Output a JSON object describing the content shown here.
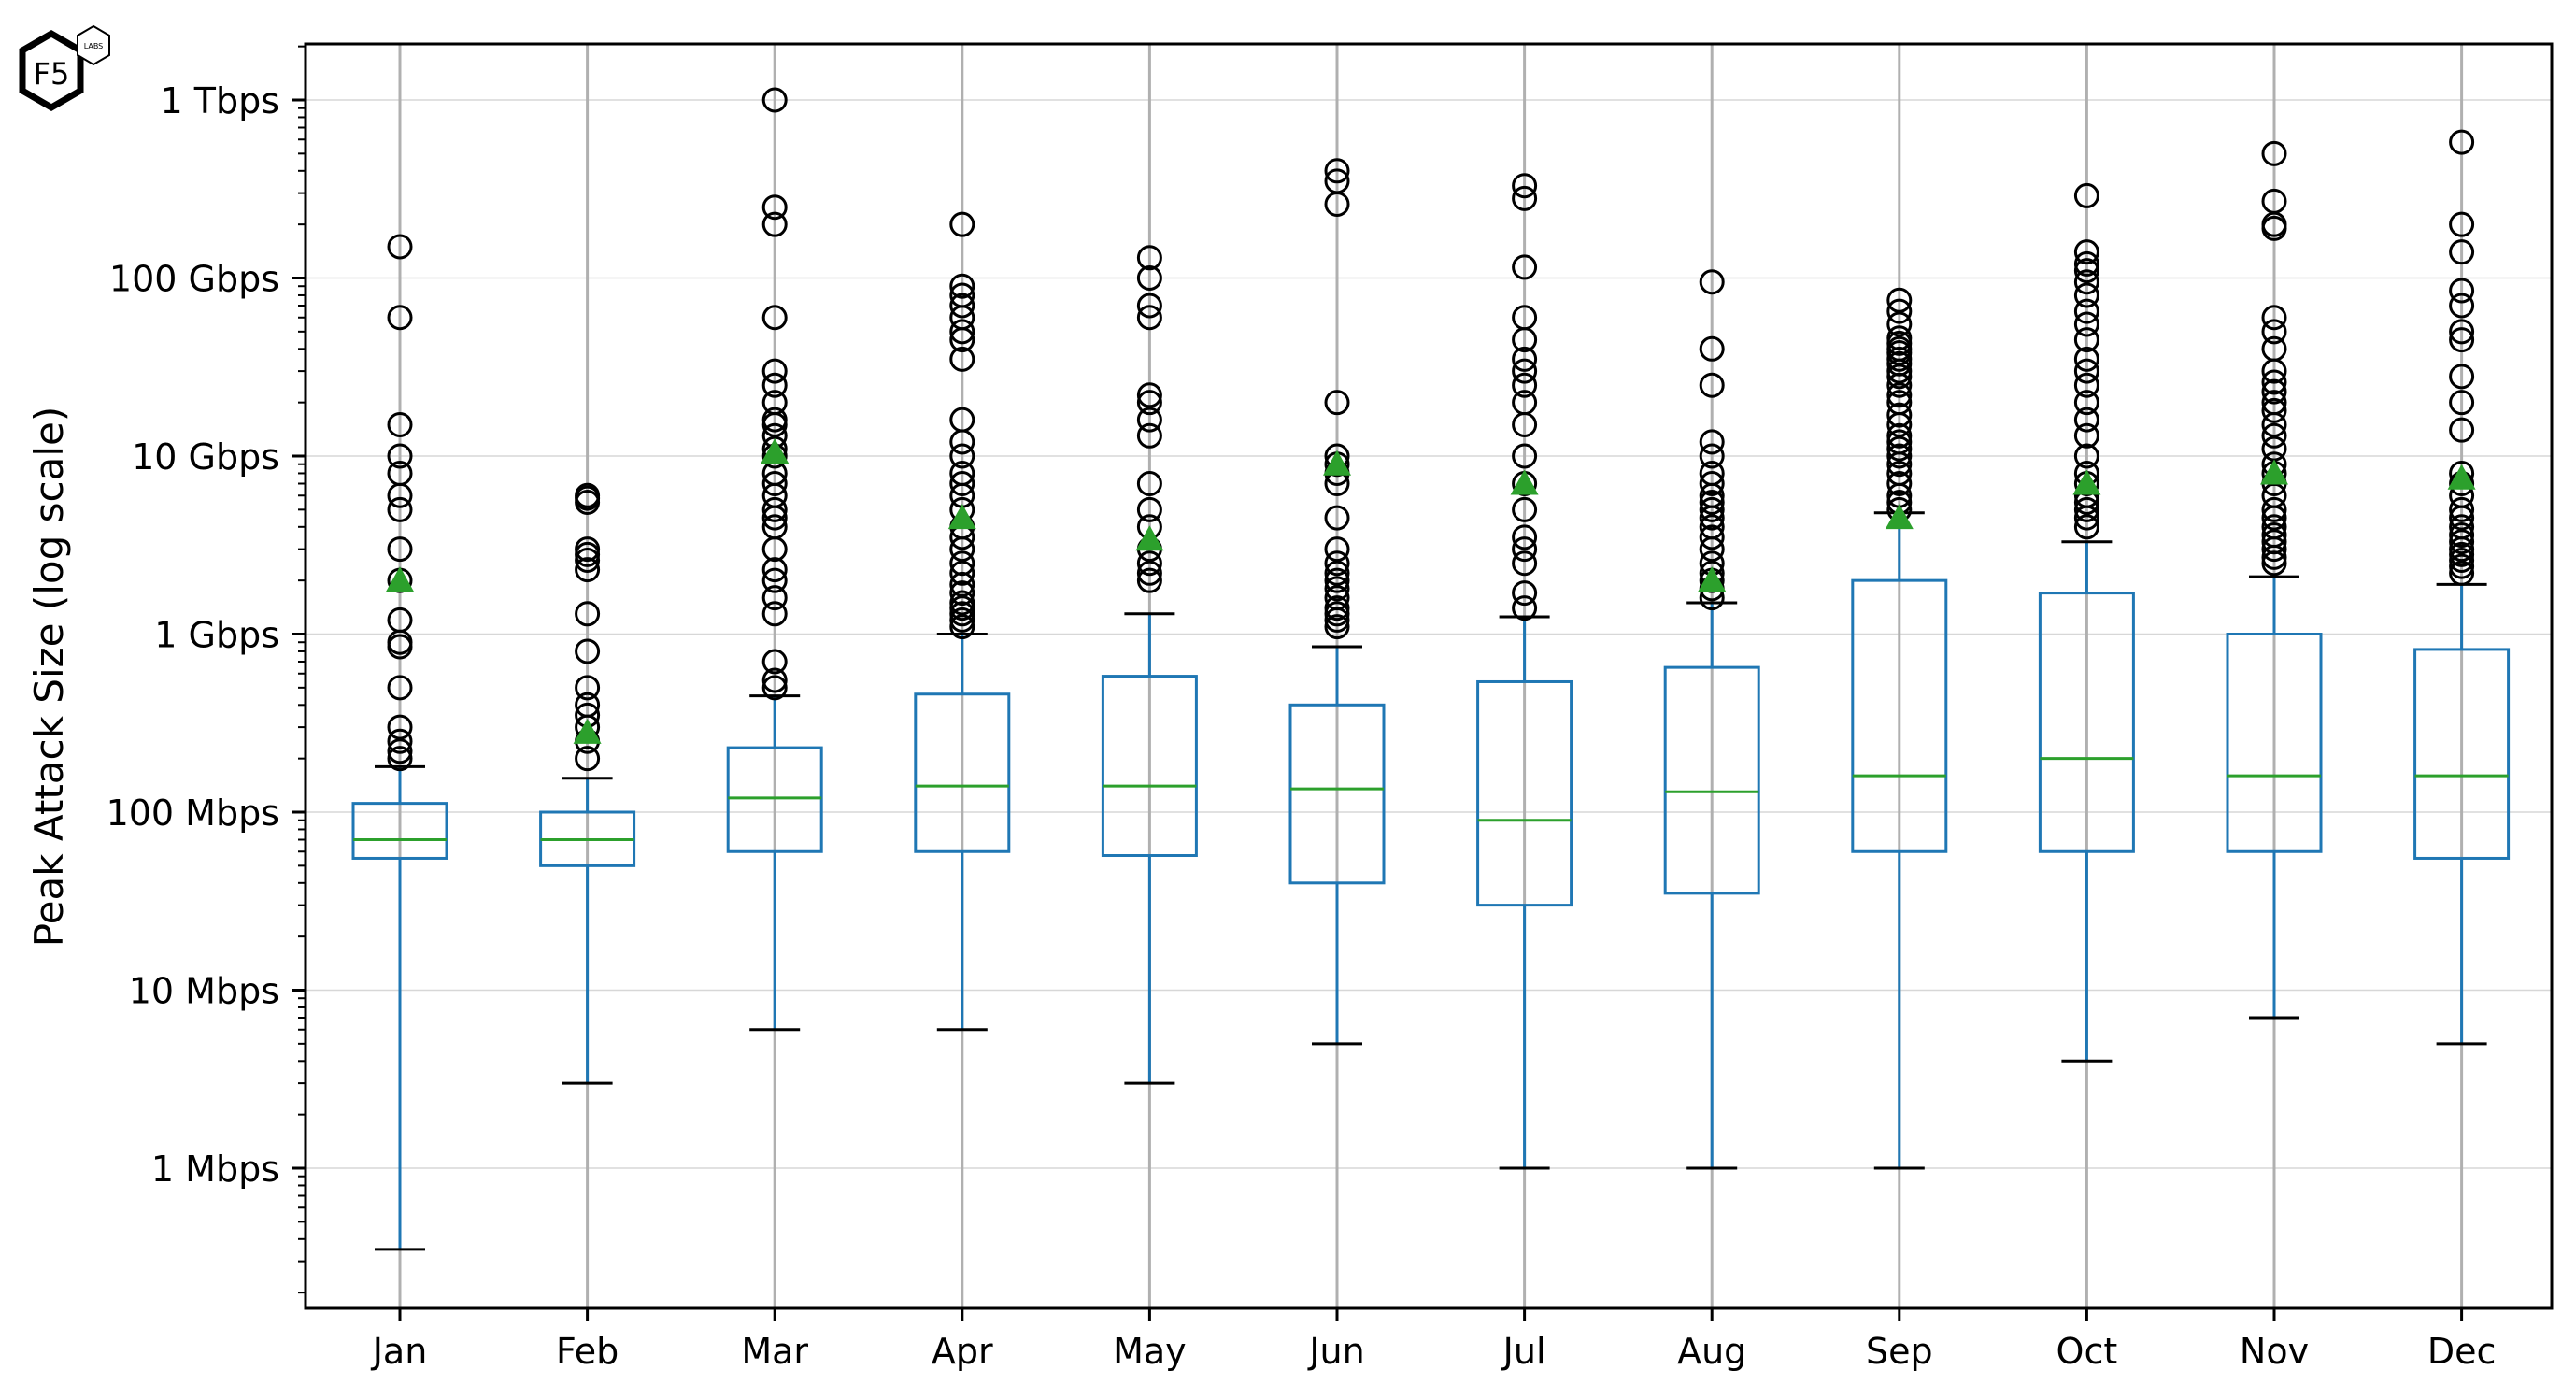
{
  "logo": {
    "main_text": "F5",
    "badge_text": "LABS"
  },
  "colors": {
    "box": "#1f77b4",
    "median": "#2ca02c",
    "mean_marker": "#2ca02c",
    "whisker": "#1f77b4",
    "cap": "#000000",
    "flier": "#000000",
    "grid": "#b0b0b0"
  },
  "chart_data": {
    "type": "box",
    "title": "",
    "xlabel": "",
    "ylabel": "Peak Attack Size (log scale)",
    "yscale": "log",
    "yunit_base": "Mbps",
    "ylim": [
      0.15,
      1600000
    ],
    "grid": true,
    "categories": [
      "Jan",
      "Feb",
      "Mar",
      "Apr",
      "May",
      "Jun",
      "Jul",
      "Aug",
      "Sep",
      "Oct",
      "Nov",
      "Dec"
    ],
    "yticks": [
      {
        "value": 1,
        "label": "1 Mbps"
      },
      {
        "value": 10,
        "label": "10 Mbps"
      },
      {
        "value": 100,
        "label": "100 Mbps"
      },
      {
        "value": 1000,
        "label": "1 Gbps"
      },
      {
        "value": 10000,
        "label": "10 Gbps"
      },
      {
        "value": 100000,
        "label": "100 Gbps"
      },
      {
        "value": 1000000,
        "label": "1 Tbps"
      }
    ],
    "boxes": [
      {
        "month": "Jan",
        "whisker_low": 0.35,
        "q1": 55,
        "median": 70,
        "q3": 112,
        "whisker_high": 180,
        "mean": 2000,
        "fliers": [
          200,
          220,
          250,
          300,
          500,
          850,
          900,
          1200,
          2000,
          3000,
          5000,
          6000,
          8000,
          10000,
          15000,
          60000,
          150000
        ]
      },
      {
        "month": "Feb",
        "whisker_low": 3,
        "q1": 50,
        "median": 70,
        "q3": 100,
        "whisker_high": 155,
        "mean": 280,
        "fliers": [
          200,
          250,
          300,
          350,
          400,
          500,
          800,
          1300,
          2300,
          2600,
          2800,
          3000,
          5500,
          5800,
          6000
        ]
      },
      {
        "month": "Mar",
        "whisker_low": 6,
        "q1": 60,
        "median": 120,
        "q3": 230,
        "whisker_high": 450,
        "mean": 10500,
        "fliers": [
          500,
          550,
          700,
          1300,
          1600,
          2000,
          2300,
          3000,
          4000,
          4500,
          5000,
          6000,
          7000,
          8000,
          10000,
          11000,
          13000,
          15000,
          16000,
          20000,
          25000,
          30000,
          60000,
          200000,
          250000,
          1000000
        ]
      },
      {
        "month": "Apr",
        "whisker_low": 6,
        "q1": 60,
        "median": 140,
        "q3": 460,
        "whisker_high": 1000,
        "mean": 4500,
        "fliers": [
          1100,
          1200,
          1300,
          1400,
          1500,
          1700,
          1900,
          2200,
          2500,
          3000,
          3500,
          4000,
          5000,
          6000,
          7000,
          8000,
          10000,
          12000,
          16000,
          35000,
          45000,
          50000,
          60000,
          70000,
          80000,
          90000,
          200000
        ]
      },
      {
        "month": "May",
        "whisker_low": 3,
        "q1": 57,
        "median": 140,
        "q3": 580,
        "whisker_high": 1300,
        "mean": 3400,
        "fliers": [
          2000,
          2200,
          2500,
          3000,
          4000,
          5000,
          7000,
          13000,
          16000,
          20000,
          22000,
          60000,
          70000,
          100000,
          130000
        ]
      },
      {
        "month": "Jun",
        "whisker_low": 5,
        "q1": 40,
        "median": 135,
        "q3": 400,
        "whisker_high": 850,
        "mean": 9000,
        "fliers": [
          1100,
          1200,
          1300,
          1400,
          1600,
          1800,
          2000,
          2200,
          2500,
          3000,
          4500,
          7000,
          8000,
          9000,
          10000,
          20000,
          260000,
          350000,
          400000
        ]
      },
      {
        "month": "Jul",
        "whisker_low": 1,
        "q1": 30,
        "median": 90,
        "q3": 540,
        "whisker_high": 1250,
        "mean": 7000,
        "fliers": [
          1400,
          1700,
          2500,
          3000,
          3500,
          5000,
          7000,
          10000,
          15000,
          20000,
          25000,
          30000,
          35000,
          45000,
          60000,
          115000,
          280000,
          330000
        ]
      },
      {
        "month": "Aug",
        "whisker_low": 1,
        "q1": 35,
        "median": 130,
        "q3": 650,
        "whisker_high": 1500,
        "mean": 2000,
        "fliers": [
          1600,
          1800,
          2000,
          2200,
          2500,
          3000,
          3500,
          4000,
          4500,
          5000,
          5500,
          6000,
          7000,
          8000,
          10000,
          12000,
          25000,
          40000,
          95000
        ]
      },
      {
        "month": "Sep",
        "whisker_low": 1,
        "q1": 60,
        "median": 160,
        "q3": 2000,
        "whisker_high": 4800,
        "mean": 4500,
        "fliers": [
          5000,
          5500,
          6000,
          7000,
          8000,
          9000,
          10000,
          11000,
          12000,
          13000,
          15000,
          17000,
          20000,
          22000,
          25000,
          28000,
          30000,
          33000,
          35000,
          38000,
          40000,
          43000,
          46000,
          55000,
          65000,
          75000
        ]
      },
      {
        "month": "Oct",
        "whisker_low": 4,
        "q1": 60,
        "median": 200,
        "q3": 1700,
        "whisker_high": 3300,
        "mean": 7000,
        "fliers": [
          4000,
          4500,
          5000,
          5500,
          6000,
          7000,
          8000,
          10000,
          13000,
          16000,
          20000,
          25000,
          30000,
          35000,
          45000,
          55000,
          65000,
          80000,
          95000,
          110000,
          120000,
          140000,
          290000
        ]
      },
      {
        "month": "Nov",
        "whisker_low": 7,
        "q1": 60,
        "median": 160,
        "q3": 1000,
        "whisker_high": 2100,
        "mean": 8000,
        "fliers": [
          2500,
          2700,
          3000,
          3300,
          3600,
          4000,
          4500,
          5000,
          6000,
          7000,
          8000,
          9000,
          11000,
          13000,
          15000,
          18000,
          20000,
          23000,
          26000,
          30000,
          40000,
          50000,
          60000,
          190000,
          200000,
          270000,
          500000
        ]
      },
      {
        "month": "Dec",
        "whisker_low": 5,
        "q1": 55,
        "median": 160,
        "q3": 820,
        "whisker_high": 1900,
        "mean": 7500,
        "fliers": [
          2200,
          2400,
          2600,
          2800,
          3000,
          3300,
          3600,
          4000,
          4500,
          5000,
          6000,
          7000,
          8000,
          14000,
          20000,
          28000,
          45000,
          50000,
          70000,
          85000,
          140000,
          200000,
          580000
        ]
      }
    ]
  }
}
